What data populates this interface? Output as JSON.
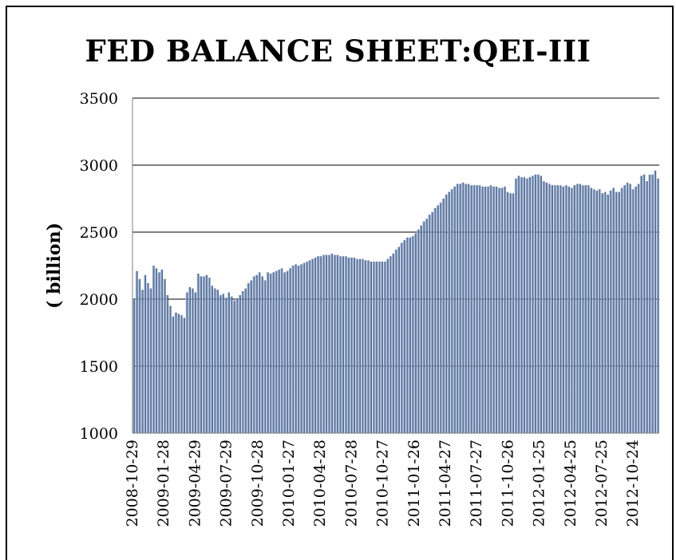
{
  "chart_data": {
    "type": "bar",
    "title": "FED BALANCE SHEET:QEI-III",
    "xlabel": "",
    "ylabel": "( billion)",
    "ylim": [
      1000,
      3500
    ],
    "yticks": [
      "1000",
      "1500",
      "2000",
      "2500",
      "3000",
      "3500"
    ],
    "xtick_labels": [
      "2008-10-29",
      "2009-01-28",
      "2009-04-29",
      "2009-07-29",
      "2009-10-28",
      "2010-01-27",
      "2010-04-28",
      "2010-07-28",
      "2010-10-27",
      "2011-01-26",
      "2011-04-27",
      "2011-07-27",
      "2011-10-26",
      "2012-01-25",
      "2012-04-25",
      "2012-07-25",
      "2012-10-24"
    ],
    "grid": true,
    "legend": "none",
    "colors": {
      "bar_dark": "#3a4f72",
      "bar_light": "#b9d3f2",
      "grid": "#000000"
    },
    "series": [
      {
        "values": [
          2000,
          2210,
          2150,
          2070,
          2180,
          2120,
          2080,
          2250,
          2230,
          2200,
          2220,
          2150,
          2030,
          1950,
          1870,
          1900,
          1890,
          1880,
          1860,
          2050,
          2090,
          2080,
          2050,
          2190,
          2170,
          2170,
          2180,
          2160,
          2100,
          2080,
          2070,
          2030,
          2040,
          2010,
          2050,
          2020,
          1990,
          2000,
          2030,
          2060,
          2080,
          2120,
          2140,
          2170,
          2180,
          2200,
          2170,
          2140,
          2200,
          2190,
          2200,
          2210,
          2220,
          2230,
          2200,
          2210,
          2230,
          2250,
          2260,
          2250,
          2260,
          2270,
          2280,
          2290,
          2300,
          2310,
          2320,
          2320,
          2330,
          2330,
          2330,
          2340,
          2330,
          2330,
          2320,
          2320,
          2320,
          2310,
          2310,
          2310,
          2300,
          2300,
          2300,
          2290,
          2290,
          2280,
          2280,
          2280,
          2280,
          2280,
          2280,
          2300,
          2320,
          2340,
          2370,
          2390,
          2420,
          2440,
          2460,
          2460,
          2470,
          2490,
          2520,
          2550,
          2580,
          2600,
          2630,
          2650,
          2680,
          2700,
          2720,
          2750,
          2780,
          2800,
          2820,
          2840,
          2860,
          2860,
          2870,
          2860,
          2860,
          2850,
          2850,
          2850,
          2850,
          2840,
          2840,
          2840,
          2850,
          2840,
          2840,
          2830,
          2830,
          2840,
          2800,
          2790,
          2790,
          2900,
          2920,
          2910,
          2910,
          2900,
          2910,
          2920,
          2930,
          2930,
          2920,
          2880,
          2870,
          2860,
          2850,
          2850,
          2850,
          2850,
          2840,
          2850,
          2840,
          2830,
          2850,
          2860,
          2860,
          2850,
          2850,
          2850,
          2830,
          2820,
          2810,
          2820,
          2790,
          2800,
          2780,
          2810,
          2830,
          2800,
          2800,
          2830,
          2850,
          2870,
          2860,
          2820,
          2840,
          2860,
          2920,
          2930,
          2880,
          2930,
          2930,
          2960,
          2900
        ]
      }
    ]
  }
}
